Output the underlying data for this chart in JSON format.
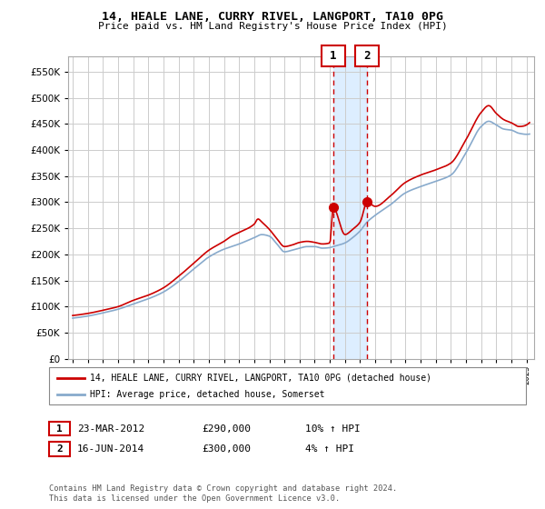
{
  "title": "14, HEALE LANE, CURRY RIVEL, LANGPORT, TA10 0PG",
  "subtitle": "Price paid vs. HM Land Registry's House Price Index (HPI)",
  "legend_line1": "14, HEALE LANE, CURRY RIVEL, LANGPORT, TA10 0PG (detached house)",
  "legend_line2": "HPI: Average price, detached house, Somerset",
  "transaction1_date": "23-MAR-2012",
  "transaction1_price": "£290,000",
  "transaction1_hpi": "10% ↑ HPI",
  "transaction2_date": "16-JUN-2014",
  "transaction2_price": "£300,000",
  "transaction2_hpi": "4% ↑ HPI",
  "footer": "Contains HM Land Registry data © Crown copyright and database right 2024.\nThis data is licensed under the Open Government Licence v3.0.",
  "red_color": "#cc0000",
  "blue_color": "#88aacc",
  "shade_color": "#ddeeff",
  "grid_color": "#cccccc",
  "ylim": [
    0,
    580000
  ],
  "yticks": [
    0,
    50000,
    100000,
    150000,
    200000,
    250000,
    300000,
    350000,
    400000,
    450000,
    500000,
    550000
  ],
  "transaction1_x": 2012.22,
  "transaction1_y": 290000,
  "transaction2_x": 2014.46,
  "transaction2_y": 300000,
  "xmin": 1995.0,
  "xmax": 2025.5
}
